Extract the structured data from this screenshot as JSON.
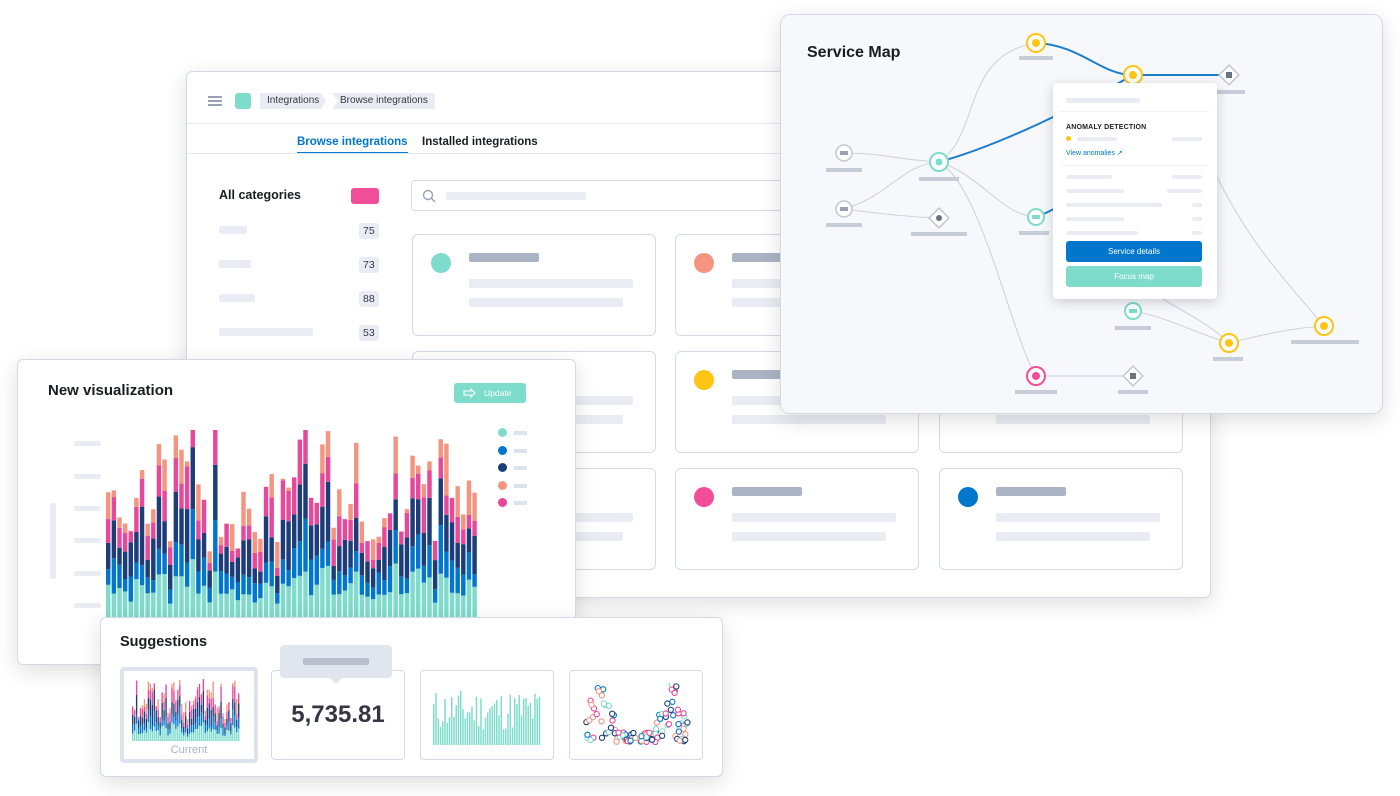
{
  "integrations": {
    "breadcrumbs": [
      "Integrations",
      "Browse integrations"
    ],
    "tabs": [
      {
        "label": "Browse integrations",
        "active": true
      },
      {
        "label": "Installed integrations",
        "active": false
      }
    ],
    "sidebar": {
      "all_categories_label": "All categories",
      "counts": [
        "75",
        "73",
        "88",
        "53"
      ]
    },
    "card_colors": [
      "#7ddccb",
      "#f59580",
      "#fec514",
      "#f04e98",
      "#0077cc"
    ]
  },
  "service_map": {
    "title": "Service Map",
    "popup": {
      "section_title": "ANOMALY DETECTION",
      "view_anomalies_link": "View anomalies",
      "service_details_button": "Service details",
      "focus_map_button": "Focus map"
    }
  },
  "new_visualization": {
    "title": "New visualization",
    "update_button": "Update",
    "legend_colors": [
      "#7ddccb",
      "#0077cc",
      "#1d3c7a",
      "#f59580",
      "#e6489a"
    ]
  },
  "suggestions": {
    "title": "Suggestions",
    "current_label": "Current",
    "metric_value": "5,735.81"
  },
  "colors": {
    "primary": "#0077cc",
    "teal": "#7ddccb",
    "pink": "#f04e98",
    "yellow": "#fec514",
    "salmon": "#f59580",
    "navy": "#1d3c7a"
  }
}
